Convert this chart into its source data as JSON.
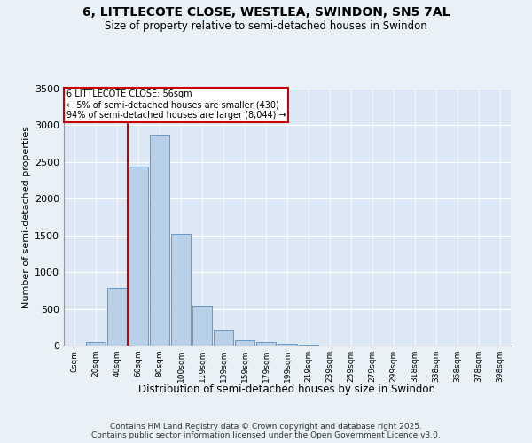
{
  "title1": "6, LITTLECOTE CLOSE, WESTLEA, SWINDON, SN5 7AL",
  "title2": "Size of property relative to semi-detached houses in Swindon",
  "xlabel": "Distribution of semi-detached houses by size in Swindon",
  "ylabel": "Number of semi-detached properties",
  "categories": [
    "0sqm",
    "20sqm",
    "40sqm",
    "60sqm",
    "80sqm",
    "100sqm",
    "119sqm",
    "139sqm",
    "159sqm",
    "179sqm",
    "199sqm",
    "219sqm",
    "239sqm",
    "259sqm",
    "279sqm",
    "299sqm",
    "318sqm",
    "338sqm",
    "358sqm",
    "378sqm",
    "398sqm"
  ],
  "values": [
    5,
    50,
    790,
    2440,
    2870,
    1520,
    540,
    210,
    75,
    45,
    20,
    10,
    5,
    3,
    2,
    1,
    1,
    0,
    0,
    0,
    0
  ],
  "bar_color": "#b8d0e8",
  "bar_edge_color": "#6699cc",
  "vline_x": 2.5,
  "annotation_title": "6 LITTLECOTE CLOSE: 56sqm",
  "annotation_line1": "← 5% of semi-detached houses are smaller (430)",
  "annotation_line2": "94% of semi-detached houses are larger (8,044) →",
  "annotation_box_color": "#ffffff",
  "annotation_box_edge": "#cc0000",
  "vline_color": "#cc0000",
  "ylim": [
    0,
    3500
  ],
  "yticks": [
    0,
    500,
    1000,
    1500,
    2000,
    2500,
    3000,
    3500
  ],
  "bg_color": "#dce8f5",
  "fig_bg_color": "#e8f0f8",
  "footer1": "Contains HM Land Registry data © Crown copyright and database right 2025.",
  "footer2": "Contains public sector information licensed under the Open Government Licence v3.0."
}
